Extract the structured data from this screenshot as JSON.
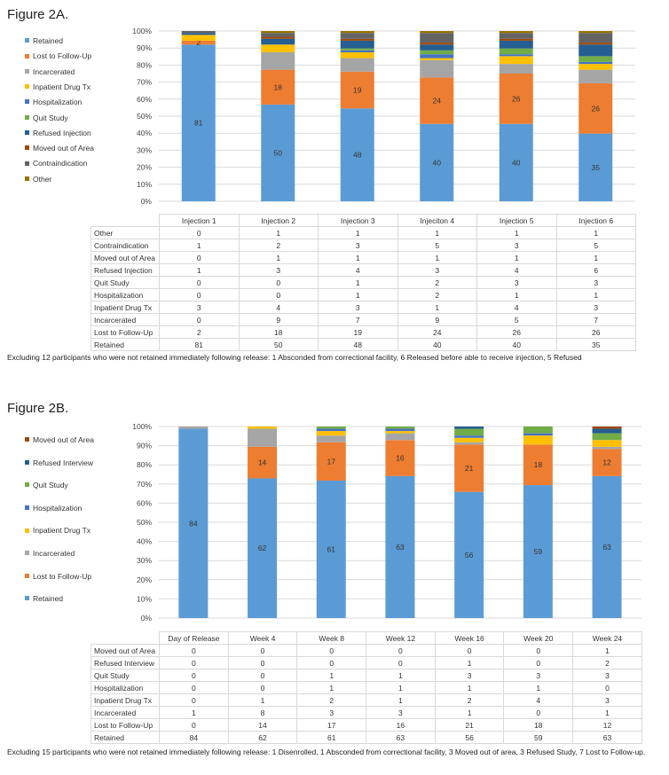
{
  "figures": [
    {
      "title": "Figure 2A.",
      "note": "Excluding 12 participants who were not retained immediately following release: 1 Absconded from correctional facility, 6 Released before able to receive injection, 5 Refused",
      "legend": [
        "Retained",
        "Lost to Follow-Up",
        "Incarcerated",
        "Inpatient Drug Tx",
        "Hospitalization",
        "Quit Study",
        "Refused Injection",
        "Moved out of Area",
        "Contraindication",
        "Other"
      ]
    },
    {
      "title": "Figure 2B.",
      "note": "Excluding 15 participants who were not retained immediately following release: 1 Disenrolled, 1 Absconded from correctional facility, 3 Moved out of area, 3 Refused Study, 7 Lost to Follow-up.",
      "legend": [
        "Moved out of Area",
        "Refused Interview",
        "Quit Study",
        "Hospitalization",
        "Inpatient Drug Tx",
        "Incarcerated",
        "Lost to Follow-Up",
        "Retained"
      ]
    }
  ],
  "colors": {
    "Retained": "#5b9bd5",
    "Lost to Follow-Up": "#ed7d31",
    "Incarcerated": "#a5a5a5",
    "Inpatient Drug Tx": "#ffc000",
    "Hospitalization": "#4472c4",
    "Quit Study": "#70ad47",
    "Refused Injection": "#255e91",
    "Refused Interview": "#255e91",
    "Moved out of Area": "#9e480e",
    "Contraindication": "#636363",
    "Other": "#997300"
  },
  "chart_data": [
    {
      "type": "bar",
      "stacked": true,
      "percent": true,
      "categories": [
        "Injection 1",
        "Injection 2",
        "Injection 3",
        "Injeciton 4",
        "Injection 5",
        "Injection 6"
      ],
      "yticks": [
        "0%",
        "10%",
        "20%",
        "30%",
        "40%",
        "50%",
        "60%",
        "70%",
        "80%",
        "90%",
        "100%"
      ],
      "ylim": [
        0,
        100
      ],
      "legend_position": "left",
      "series": [
        {
          "name": "Retained",
          "values": [
            81,
            50,
            48,
            40,
            40,
            35
          ]
        },
        {
          "name": "Lost to Follow-Up",
          "values": [
            2,
            18,
            19,
            24,
            26,
            26
          ]
        },
        {
          "name": "Incarcerated",
          "values": [
            0,
            9,
            7,
            9,
            5,
            7
          ]
        },
        {
          "name": "Inpatient Drug Tx",
          "values": [
            3,
            4,
            3,
            1,
            4,
            3
          ]
        },
        {
          "name": "Hospitalization",
          "values": [
            0,
            0,
            1,
            2,
            1,
            1
          ]
        },
        {
          "name": "Quit Study",
          "values": [
            0,
            0,
            1,
            2,
            3,
            3
          ]
        },
        {
          "name": "Refused Injection",
          "values": [
            1,
            3,
            4,
            3,
            4,
            6
          ]
        },
        {
          "name": "Moved out of Area",
          "values": [
            0,
            1,
            1,
            1,
            1,
            1
          ]
        },
        {
          "name": "Contraindication",
          "values": [
            1,
            2,
            3,
            5,
            3,
            5
          ]
        },
        {
          "name": "Other",
          "values": [
            0,
            1,
            1,
            1,
            1,
            1
          ]
        }
      ],
      "labeled_series": [
        "Retained",
        "Lost to Follow-Up"
      ],
      "table_rows": [
        "Other",
        "Contraindication",
        "Moved out of Area",
        "Refused Injection",
        "Quit Study",
        "Hospitalization",
        "Inpatient Drug Tx",
        "Incarcerated",
        "Lost to Follow-Up",
        "Retained"
      ]
    },
    {
      "type": "bar",
      "stacked": true,
      "percent": true,
      "categories": [
        "Day of Release",
        "Week 4",
        "Week 8",
        "Week 12",
        "Week 16",
        "Week 20",
        "Week 24"
      ],
      "yticks": [
        "0%",
        "10%",
        "20%",
        "30%",
        "40%",
        "50%",
        "60%",
        "70%",
        "80%",
        "90%",
        "100%"
      ],
      "ylim": [
        0,
        100
      ],
      "legend_position": "left",
      "series": [
        {
          "name": "Retained",
          "values": [
            84,
            62,
            61,
            63,
            56,
            59,
            63
          ]
        },
        {
          "name": "Lost to Follow-Up",
          "values": [
            0,
            14,
            17,
            16,
            21,
            18,
            12
          ]
        },
        {
          "name": "Incarcerated",
          "values": [
            1,
            8,
            3,
            3,
            1,
            0,
            1
          ]
        },
        {
          "name": "Inpatient Drug Tx",
          "values": [
            0,
            1,
            2,
            1,
            2,
            4,
            3
          ]
        },
        {
          "name": "Hospitalization",
          "values": [
            0,
            0,
            1,
            1,
            1,
            1,
            0
          ]
        },
        {
          "name": "Quit Study",
          "values": [
            0,
            0,
            1,
            1,
            3,
            3,
            3
          ]
        },
        {
          "name": "Refused Interview",
          "values": [
            0,
            0,
            0,
            0,
            1,
            0,
            2
          ]
        },
        {
          "name": "Moved out of Area",
          "values": [
            0,
            0,
            0,
            0,
            0,
            0,
            1
          ]
        }
      ],
      "labeled_series": [
        "Retained",
        "Lost to Follow-Up"
      ],
      "table_rows": [
        "Moved out of Area",
        "Refused Interview",
        "Quit Study",
        "Hospitalization",
        "Inpatient Drug Tx",
        "Incarcerated",
        "Lost to Follow-Up",
        "Retained"
      ]
    }
  ]
}
